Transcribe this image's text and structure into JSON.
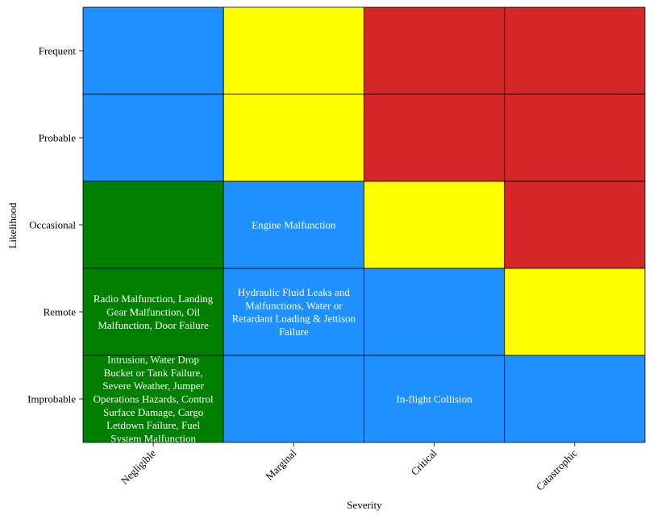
{
  "chart_data": {
    "type": "heatmap",
    "title": "",
    "xlabel": "Severity",
    "ylabel": "Likelihood",
    "x_categories": [
      "Negligible",
      "Marginal",
      "Critical",
      "Catastrophic"
    ],
    "y_categories": [
      "Frequent",
      "Probable",
      "Occasional",
      "Remote",
      "Improbable"
    ],
    "colors": {
      "blue": "#1e90ff",
      "yellow": "#ffff00",
      "red": "#d62728",
      "green": "#008000"
    },
    "cell_colors": [
      [
        "blue",
        "yellow",
        "red",
        "red"
      ],
      [
        "blue",
        "yellow",
        "red",
        "red"
      ],
      [
        "green",
        "blue",
        "yellow",
        "red"
      ],
      [
        "green",
        "blue",
        "blue",
        "yellow"
      ],
      [
        "green",
        "blue",
        "blue",
        "blue"
      ]
    ],
    "cell_labels": [
      [
        [],
        [],
        [],
        []
      ],
      [
        [],
        [],
        [],
        []
      ],
      [
        [],
        [
          "Engine Malfunction"
        ],
        [],
        []
      ],
      [
        [
          "Radio Malfunction,  Landing",
          "Gear Malfunction,  Oil",
          "Malfunction,  Door Failure"
        ],
        [
          "Hydraulic Fluid Leaks and",
          "Malfunctions,  Water or",
          "Retardant Loading & Jettison",
          "Failure"
        ],
        [],
        []
      ],
      [
        [
          "Intrusion,  Water Drop",
          "Bucket or Tank Failure,",
          "Severe Weather,  Jumper",
          "Operations Hazards,  Control",
          "Surface Damage,  Cargo",
          "Letdown Failure,  Fuel",
          "System Malfunction"
        ],
        [],
        [
          "In-flight Collision"
        ],
        []
      ]
    ],
    "x_tick_rotation": 45,
    "grid": true,
    "legend": "none"
  }
}
